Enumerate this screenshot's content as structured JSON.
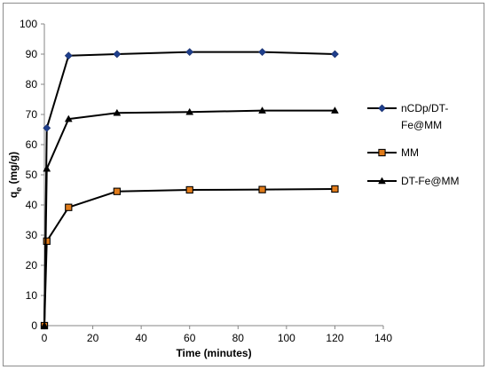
{
  "chart_data": {
    "type": "line",
    "title": "",
    "xlabel": "Time (minutes)",
    "ylabel_main": "q",
    "ylabel_sub": "e",
    "ylabel_unit": " (mg/g)",
    "xlim": [
      0,
      140
    ],
    "ylim": [
      0,
      100
    ],
    "xticks": [
      0,
      20,
      40,
      60,
      80,
      100,
      120,
      140
    ],
    "yticks": [
      0,
      10,
      20,
      30,
      40,
      50,
      60,
      70,
      80,
      90,
      100
    ],
    "grid": false,
    "legend_position": "right",
    "series": [
      {
        "name": "nCDp/DT-Fe@MM",
        "legend_lines": [
          "nCDp/DT-",
          "Fe@MM"
        ],
        "marker": "diamond",
        "marker_color": "#1f3f8c",
        "line_color": "#000000",
        "x": [
          0,
          1,
          10,
          30,
          60,
          90,
          120
        ],
        "y": [
          0,
          65.5,
          89.5,
          90,
          90.7,
          90.7,
          90
        ]
      },
      {
        "name": "MM",
        "legend_lines": [
          "MM"
        ],
        "marker": "square",
        "marker_color": "#e07b1a",
        "line_color": "#000000",
        "x": [
          0,
          1,
          10,
          30,
          60,
          90,
          120
        ],
        "y": [
          0,
          28,
          39.2,
          44.5,
          45,
          45.1,
          45.3
        ]
      },
      {
        "name": "DT-Fe@MM",
        "legend_lines": [
          "DT-Fe@MM"
        ],
        "marker": "triangle",
        "marker_color": "#000000",
        "line_color": "#000000",
        "x": [
          0,
          1,
          10,
          30,
          60,
          90,
          120
        ],
        "y": [
          0,
          52,
          68.5,
          70.5,
          70.8,
          71.3,
          71.3
        ]
      }
    ]
  }
}
